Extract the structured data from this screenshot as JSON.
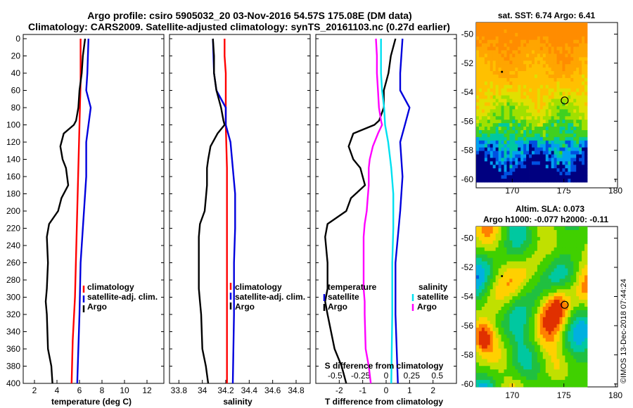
{
  "header": {
    "title_line1": "Argo profile: csiro 5905032_20 03-Nov-2016 54.57S 175.08E (DM data)",
    "title_line2": "Climatology: CARS2009. Satellite-adjusted climatology: synTS_20161103.nc (0.27d earlier)"
  },
  "colors": {
    "climatology": "#ff0000",
    "satellite": "#0000dd",
    "argo": "#000000",
    "sal_satellite": "#00e0f0",
    "sal_argo": "#ff00ff"
  },
  "depth_axis": {
    "ticks": [
      "0",
      "20",
      "40",
      "60",
      "80",
      "100",
      "120",
      "140",
      "160",
      "180",
      "200",
      "220",
      "240",
      "260",
      "280",
      "300",
      "320",
      "340",
      "360",
      "380",
      "400"
    ]
  },
  "chart_data": [
    {
      "type": "line",
      "panel": "temperature",
      "xlabel": "temperature (deg C)",
      "xlim": [
        1,
        13.5
      ],
      "ylim": [
        400,
        0
      ],
      "xticks": [
        "2",
        "4",
        "6",
        "8",
        "10",
        "12"
      ],
      "xtick_values": [
        2,
        4,
        6,
        8,
        10,
        12
      ],
      "legend": [
        "climatology",
        "satellite-adj. clim.",
        "Argo"
      ],
      "series": [
        {
          "name": "climatology",
          "depth": [
            0,
            50,
            100,
            150,
            200,
            250,
            300,
            350,
            400
          ],
          "values": [
            6.1,
            6.1,
            6.0,
            5.9,
            5.8,
            5.7,
            5.6,
            5.4,
            5.3
          ]
        },
        {
          "name": "satellite-adj. clim.",
          "depth": [
            0,
            40,
            60,
            80,
            100,
            120,
            160,
            200,
            260,
            320,
            400
          ],
          "values": [
            6.8,
            6.7,
            6.6,
            7.0,
            6.8,
            6.6,
            6.6,
            6.4,
            6.1,
            6.0,
            5.8
          ]
        },
        {
          "name": "Argo",
          "depth": [
            0,
            20,
            40,
            60,
            80,
            95,
            100,
            110,
            125,
            140,
            150,
            170,
            185,
            200,
            215,
            230,
            260,
            290,
            305,
            320,
            360,
            380,
            400
          ],
          "values": [
            6.5,
            6.3,
            6.2,
            6.0,
            5.9,
            5.7,
            5.5,
            4.6,
            4.3,
            4.5,
            4.8,
            5.0,
            4.4,
            4.1,
            3.3,
            3.1,
            3.2,
            3.1,
            3.0,
            3.1,
            3.2,
            3.5,
            3.6
          ]
        }
      ]
    },
    {
      "type": "line",
      "panel": "salinity",
      "xlabel": "salinity",
      "xlim": [
        33.72,
        34.92
      ],
      "ylim": [
        400,
        0
      ],
      "xticks": [
        "33.8",
        "34",
        "34.2",
        "34.4",
        "34.6",
        "34.8"
      ],
      "xtick_values": [
        33.8,
        34.0,
        34.2,
        34.4,
        34.6,
        34.8
      ],
      "legend": [
        "climatology",
        "satellite-adj. clim.",
        "Argo"
      ],
      "series": [
        {
          "name": "climatology",
          "depth": [
            0,
            20,
            40,
            80,
            100,
            150,
            200,
            250,
            300,
            350,
            400
          ],
          "values": [
            34.19,
            34.19,
            34.2,
            34.2,
            34.2,
            34.21,
            34.21,
            34.21,
            34.21,
            34.21,
            34.21
          ]
        },
        {
          "name": "satellite-adj. clim.",
          "depth": [
            0,
            40,
            60,
            80,
            100,
            120,
            150,
            180,
            220,
            260,
            320,
            400
          ],
          "values": [
            34.09,
            34.1,
            34.12,
            34.2,
            34.2,
            34.24,
            34.26,
            34.28,
            34.28,
            34.27,
            34.27,
            34.26
          ]
        },
        {
          "name": "Argo",
          "depth": [
            0,
            20,
            40,
            60,
            80,
            95,
            100,
            110,
            125,
            140,
            150,
            170,
            185,
            200,
            215,
            230,
            260,
            290,
            305,
            320,
            360,
            380,
            400
          ],
          "values": [
            34.09,
            34.1,
            34.1,
            34.12,
            34.16,
            34.18,
            34.19,
            34.13,
            34.07,
            34.05,
            34.04,
            34.04,
            34.03,
            34.02,
            33.98,
            33.97,
            33.97,
            33.97,
            33.98,
            33.99,
            34.0,
            34.03,
            34.05
          ]
        }
      ]
    },
    {
      "type": "line",
      "panel": "difference",
      "xlabel": "T difference from climatology",
      "xlabel2": "S difference from climatology",
      "xlim": [
        -3,
        3
      ],
      "ylim": [
        400,
        0
      ],
      "xticks": [
        "-2",
        "-1",
        "0",
        "1",
        "2"
      ],
      "xtick_values": [
        -2,
        -1,
        0,
        1,
        2
      ],
      "sal_xticks": [
        "-0.5",
        "-0.25",
        "0",
        "0.25",
        "0.5"
      ],
      "sal_xtick_values": [
        -0.5,
        -0.25,
        0,
        0.25,
        0.5
      ],
      "legend_t": [
        "temperature",
        "satellite",
        "Argo"
      ],
      "legend_s": [
        "salinity",
        "satellite",
        "Argo"
      ],
      "series": [
        {
          "name": "T satellite",
          "depth": [
            0,
            40,
            60,
            80,
            100,
            120,
            160,
            200,
            260,
            320,
            400
          ],
          "values": [
            0.7,
            0.6,
            0.6,
            1.0,
            0.8,
            0.6,
            0.7,
            0.6,
            0.4,
            0.4,
            0.5
          ]
        },
        {
          "name": "T Argo",
          "depth": [
            0,
            20,
            40,
            60,
            80,
            95,
            100,
            110,
            125,
            140,
            150,
            170,
            185,
            200,
            215,
            230,
            260,
            290,
            305,
            320,
            360,
            380,
            400
          ],
          "values": [
            0.4,
            0.2,
            0.1,
            -0.1,
            -0.1,
            -0.3,
            -0.5,
            -1.4,
            -1.6,
            -1.4,
            -1.1,
            -0.9,
            -1.5,
            -1.7,
            -2.5,
            -2.6,
            -2.5,
            -2.5,
            -2.6,
            -2.5,
            -2.2,
            -1.9,
            -1.7
          ]
        },
        {
          "name": "S satellite",
          "depth": [
            0,
            40,
            60,
            80,
            100,
            120,
            150,
            180,
            220,
            260,
            320,
            400
          ],
          "values": [
            -0.05,
            -0.05,
            -0.04,
            -0.02,
            -0.01,
            0.02,
            0.05,
            0.07,
            0.07,
            0.06,
            0.06,
            0.05
          ]
        },
        {
          "name": "S Argo",
          "depth": [
            0,
            20,
            40,
            60,
            80,
            95,
            100,
            110,
            125,
            140,
            150,
            170,
            185,
            200,
            215,
            230,
            260,
            290,
            305,
            320,
            360,
            380,
            400
          ],
          "values": [
            -0.1,
            -0.09,
            -0.09,
            -0.08,
            -0.07,
            -0.05,
            -0.04,
            -0.08,
            -0.13,
            -0.16,
            -0.17,
            -0.17,
            -0.18,
            -0.19,
            -0.21,
            -0.22,
            -0.22,
            -0.22,
            -0.21,
            -0.21,
            -0.2,
            -0.17,
            -0.15
          ]
        }
      ]
    }
  ],
  "sst_map": {
    "title": "sat. SST: 6.74 Argo: 6.41",
    "lat_ticks": [
      "-50",
      "-52",
      "-54",
      "-56",
      "-58",
      "-60"
    ],
    "lon_ticks": [
      "170",
      "175",
      "180"
    ],
    "lat_range": [
      -60.2,
      -49.2
    ],
    "lon_range": [
      166.5,
      180.2
    ],
    "profile_point": {
      "lon": 175.08,
      "lat": -54.57
    }
  },
  "sla_map": {
    "title_line1": "Altim. SLA: 0.073",
    "title_line2": "Argo h1000: -0.077 h2000: -0.11",
    "lat_ticks": [
      "-50",
      "-52",
      "-54",
      "-56",
      "-58",
      "-60"
    ],
    "lon_ticks": [
      "170",
      "175",
      "180"
    ],
    "lat_range": [
      -60.2,
      -49.2
    ],
    "lon_range": [
      166.5,
      180.2
    ],
    "profile_point": {
      "lon": 175.08,
      "lat": -54.57
    }
  },
  "credit": "©IMOS 13-Dec-2018 07:44:24"
}
